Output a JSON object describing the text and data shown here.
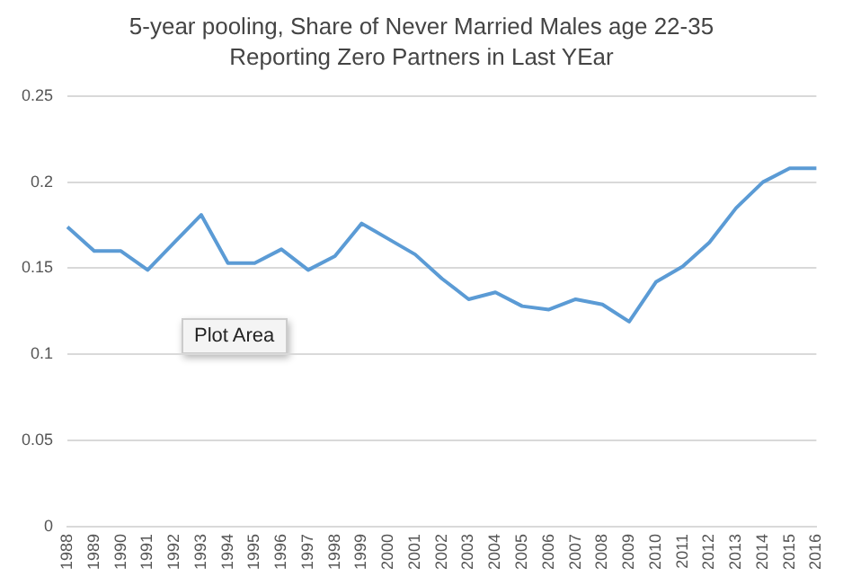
{
  "chart_data": {
    "type": "line",
    "title": "5-year pooling, Share of Never Married Males age 22-35\nReporting Zero Partners in Last YEar",
    "categories": [
      "1988",
      "1989",
      "1990",
      "1991",
      "1992",
      "1993",
      "1994",
      "1995",
      "1996",
      "1997",
      "1998",
      "1999",
      "2000",
      "2001",
      "2002",
      "2003",
      "2004",
      "2005",
      "2006",
      "2007",
      "2008",
      "2009",
      "2010",
      "2011",
      "2012",
      "2013",
      "2014",
      "2015",
      "2016"
    ],
    "series": [
      {
        "color": "#5b9bd5",
        "values": [
          0.174,
          0.16,
          0.16,
          0.149,
          0.165,
          0.181,
          0.153,
          0.153,
          0.161,
          0.149,
          0.157,
          0.176,
          0.167,
          0.158,
          0.144,
          0.132,
          0.136,
          0.128,
          0.126,
          0.132,
          0.129,
          0.119,
          0.142,
          0.151,
          0.165,
          0.185,
          0.2,
          0.208,
          0.208
        ]
      }
    ],
    "ylim": [
      0,
      0.25
    ],
    "yticks": [
      0,
      0.05,
      0.1,
      0.15,
      0.2,
      0.25
    ],
    "grid": "y",
    "legend": false,
    "marker": "none",
    "line_style": "solid",
    "annotations": [
      "Plot Area"
    ]
  }
}
